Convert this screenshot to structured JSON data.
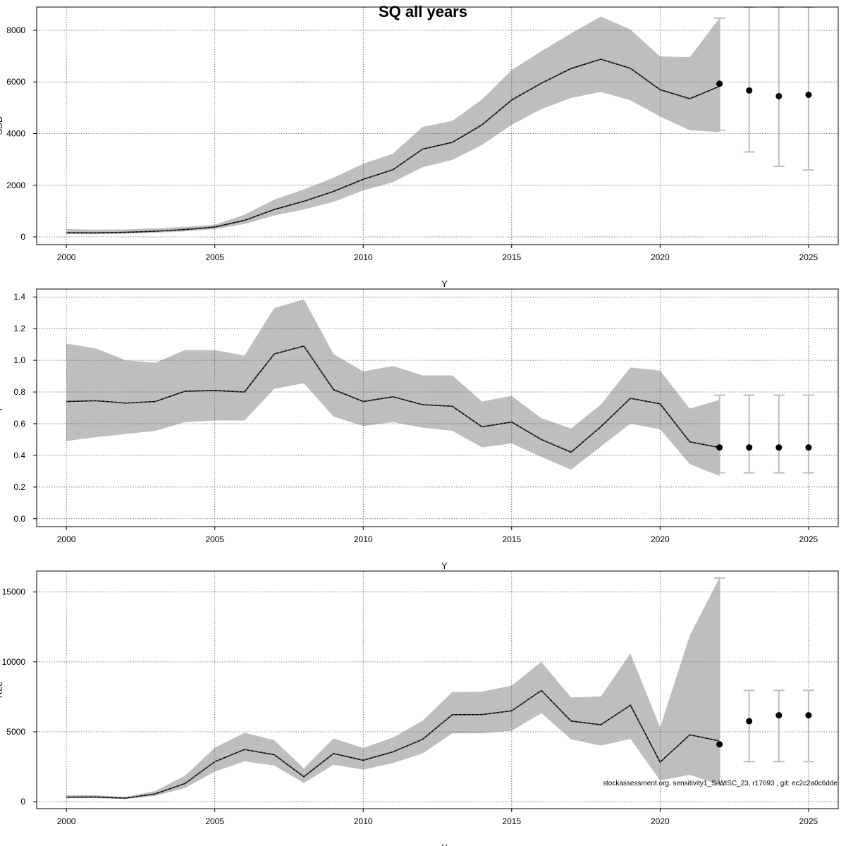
{
  "title": "SQ all years",
  "footnote": "stockassessment.org, sensitivity1_S-WISC_23, r17693 , git: ec2c2a0c6dde",
  "colors": {
    "band": "#bebebe",
    "line": "#000000",
    "errorbar": "#bebebe",
    "grid": "#595959"
  },
  "chart_data": [
    {
      "type": "area",
      "xlabel": "Y",
      "ylabel": "SSB",
      "xlim": [
        1999,
        2026
      ],
      "ylim": [
        -300,
        8900
      ],
      "xticks": [
        2000,
        2005,
        2010,
        2015,
        2020,
        2025
      ],
      "yticks": [
        0,
        2000,
        4000,
        6000,
        8000
      ],
      "grid": true,
      "series": [
        {
          "x": [
            2000,
            2001,
            2002,
            2003,
            2004,
            2005,
            2006,
            2007,
            2008,
            2009,
            2010,
            2011,
            2012,
            2013,
            2014,
            2015,
            2016,
            2017,
            2018,
            2019,
            2020,
            2021,
            2022
          ],
          "estimate": [
            160,
            155,
            175,
            220,
            285,
            380,
            640,
            1060,
            1380,
            1760,
            2230,
            2600,
            3400,
            3660,
            4340,
            5300,
            5950,
            6520,
            6880,
            6530,
            5700,
            5350,
            5830
          ],
          "lower": [
            110,
            105,
            125,
            160,
            215,
            300,
            500,
            830,
            1060,
            1360,
            1800,
            2120,
            2700,
            2980,
            3560,
            4340,
            4950,
            5380,
            5610,
            5290,
            4660,
            4130,
            4060
          ],
          "upper": [
            300,
            280,
            290,
            330,
            390,
            470,
            860,
            1440,
            1840,
            2290,
            2830,
            3220,
            4260,
            4490,
            5320,
            6460,
            7190,
            7880,
            8530,
            8030,
            6990,
            6960,
            8470
          ]
        }
      ],
      "forecast": {
        "x": [
          2022,
          2023,
          2024,
          2025
        ],
        "estimate": [
          5930,
          5670,
          5450,
          5500
        ],
        "lower": [
          4130,
          3290,
          2730,
          2590
        ],
        "upper": [
          8470,
          8900,
          8900,
          8900
        ]
      }
    },
    {
      "type": "area",
      "xlabel": "Y",
      "ylabel": "F",
      "xlim": [
        1999,
        2026
      ],
      "ylim": [
        -0.05,
        1.45
      ],
      "xticks": [
        2000,
        2005,
        2010,
        2015,
        2020,
        2025
      ],
      "yticks": [
        0.0,
        0.2,
        0.4,
        0.6,
        0.8,
        1.0,
        1.2,
        1.4
      ],
      "grid": true,
      "series": [
        {
          "x": [
            2000,
            2001,
            2002,
            2003,
            2004,
            2005,
            2006,
            2007,
            2008,
            2009,
            2010,
            2011,
            2012,
            2013,
            2014,
            2015,
            2016,
            2017,
            2018,
            2019,
            2020,
            2021,
            2022
          ],
          "estimate": [
            0.74,
            0.745,
            0.73,
            0.74,
            0.805,
            0.81,
            0.8,
            1.04,
            1.09,
            0.815,
            0.74,
            0.77,
            0.72,
            0.71,
            0.58,
            0.61,
            0.5,
            0.42,
            0.58,
            0.76,
            0.725,
            0.485,
            0.45
          ],
          "lower": [
            0.49,
            0.515,
            0.535,
            0.555,
            0.61,
            0.62,
            0.62,
            0.82,
            0.855,
            0.645,
            0.585,
            0.61,
            0.575,
            0.555,
            0.45,
            0.475,
            0.39,
            0.31,
            0.455,
            0.6,
            0.565,
            0.345,
            0.27
          ],
          "upper": [
            1.105,
            1.075,
            1.0,
            0.985,
            1.065,
            1.065,
            1.03,
            1.33,
            1.385,
            1.04,
            0.93,
            0.965,
            0.905,
            0.905,
            0.74,
            0.775,
            0.635,
            0.57,
            0.72,
            0.955,
            0.935,
            0.695,
            0.75
          ]
        }
      ],
      "forecast": {
        "x": [
          2022,
          2023,
          2024,
          2025
        ],
        "estimate": [
          0.45,
          0.45,
          0.45,
          0.45
        ],
        "lower": [
          0.29,
          0.29,
          0.29,
          0.29
        ],
        "upper": [
          0.78,
          0.78,
          0.78,
          0.78
        ]
      }
    },
    {
      "type": "area",
      "xlabel": "Y",
      "ylabel": "Rec",
      "xlim": [
        1999,
        2026
      ],
      "ylim": [
        -500,
        16500
      ],
      "xticks": [
        2000,
        2005,
        2010,
        2015,
        2020,
        2025
      ],
      "yticks": [
        0,
        5000,
        10000,
        15000
      ],
      "grid": true,
      "series": [
        {
          "x": [
            2000,
            2001,
            2002,
            2003,
            2004,
            2005,
            2006,
            2007,
            2008,
            2009,
            2010,
            2011,
            2012,
            2013,
            2014,
            2015,
            2016,
            2017,
            2018,
            2019,
            2020,
            2021,
            2022
          ],
          "estimate": [
            320,
            330,
            250,
            560,
            1300,
            2860,
            3730,
            3360,
            1780,
            3440,
            2960,
            3560,
            4460,
            6220,
            6230,
            6500,
            7950,
            5770,
            5500,
            6900,
            2830,
            4780,
            4350
          ],
          "lower": [
            240,
            250,
            190,
            420,
            980,
            2150,
            2880,
            2590,
            1330,
            2640,
            2290,
            2760,
            3450,
            4890,
            4890,
            5070,
            6330,
            4460,
            4010,
            4490,
            1510,
            1920,
            1200
          ],
          "upper": [
            460,
            460,
            340,
            770,
            1860,
            3860,
            4930,
            4400,
            2380,
            4520,
            3840,
            4590,
            5790,
            7840,
            7870,
            8300,
            10000,
            7450,
            7520,
            10600,
            5310,
            11900,
            16000
          ]
        }
      ],
      "forecast": {
        "x": [
          2022,
          2023,
          2024,
          2025
        ],
        "estimate": [
          4100,
          5760,
          6180,
          6180
        ],
        "lower": [
          1200,
          2860,
          2860,
          2860
        ],
        "upper": [
          16000,
          7960,
          7960,
          7960
        ]
      }
    }
  ]
}
